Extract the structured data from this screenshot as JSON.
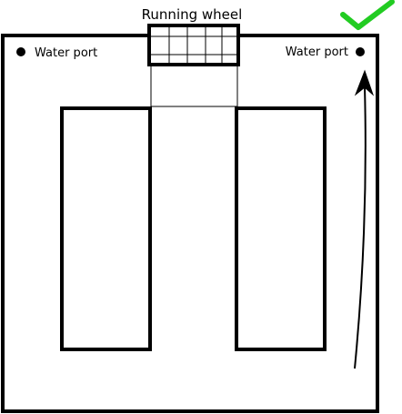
{
  "labels": {
    "wheel": "Running wheel",
    "water_port_left": "Water port",
    "water_port_right": "Water port"
  },
  "colors": {
    "outline": "#000000",
    "checkmark": "#22cc22",
    "background": "#ffffff"
  },
  "icons": {
    "checkmark": "checkmark-icon",
    "arrow": "curved-arrow-icon",
    "port": "water-port-dot-icon"
  }
}
